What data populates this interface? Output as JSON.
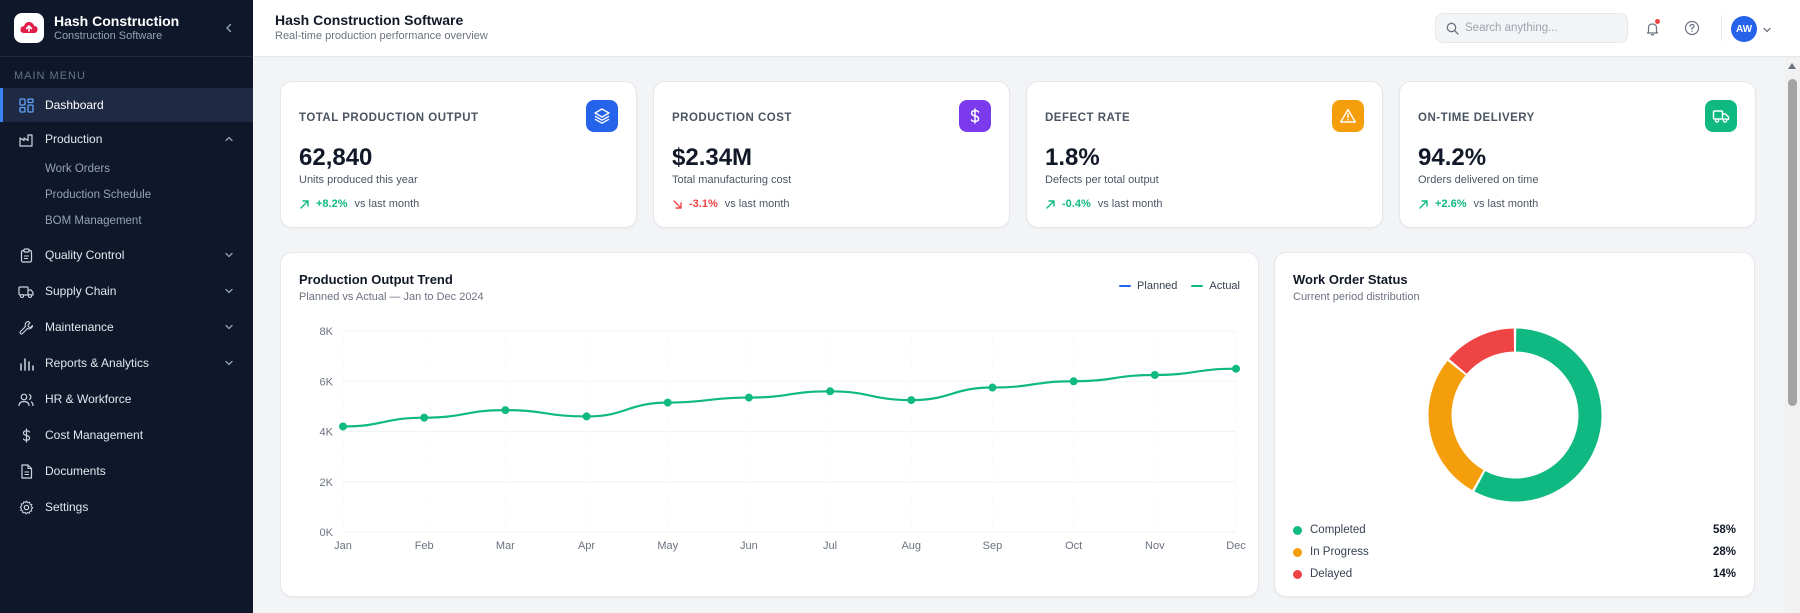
{
  "app": {
    "brand_title": "Hash Construction",
    "brand_subtitle": "Construction Software"
  },
  "sidebar": {
    "heading": "MAIN MENU",
    "items": [
      {
        "label": "Dashboard",
        "icon": "dashboard-grid-icon",
        "active": true
      },
      {
        "label": "Production",
        "icon": "factory-icon",
        "expanded": true
      },
      {
        "label": "Quality Control",
        "icon": "clipboard-icon"
      },
      {
        "label": "Supply Chain",
        "icon": "truck-icon"
      },
      {
        "label": "Maintenance",
        "icon": "wrench-icon"
      },
      {
        "label": "Reports & Analytics",
        "icon": "bar-chart-icon"
      },
      {
        "label": "HR & Workforce",
        "icon": "users-icon"
      },
      {
        "label": "Cost Management",
        "icon": "dollar-icon"
      },
      {
        "label": "Documents",
        "icon": "document-icon"
      },
      {
        "label": "Settings",
        "icon": "gear-icon"
      }
    ],
    "production_subitems": [
      "Work Orders",
      "Production Schedule",
      "BOM Management"
    ]
  },
  "header": {
    "title": "Hash Construction Software",
    "subtitle": "Real-time production performance overview",
    "search_placeholder": "Search anything...",
    "avatar_initials": "AW"
  },
  "kpis": [
    {
      "label": "TOTAL PRODUCTION OUTPUT",
      "value": "62,840",
      "desc": "Units produced this year",
      "trend": "+8.2%",
      "trend_dir": "up",
      "trend_label": "vs last month",
      "icon": "layers-icon",
      "color": "#2563eb"
    },
    {
      "label": "PRODUCTION COST",
      "value": "$2.34M",
      "desc": "Total manufacturing cost",
      "trend": "-3.1%",
      "trend_dir": "down",
      "trend_label": "vs last month",
      "icon": "dollar-icon",
      "color": "#7c3aed"
    },
    {
      "label": "DEFECT RATE",
      "value": "1.8%",
      "desc": "Defects per total output",
      "trend": "-0.4%",
      "trend_dir": "up",
      "trend_label": "vs last month",
      "icon": "warning-icon",
      "color": "#f59e0b"
    },
    {
      "label": "ON-TIME DELIVERY",
      "value": "94.2%",
      "desc": "Orders delivered on time",
      "trend": "+2.6%",
      "trend_dir": "up",
      "trend_label": "vs last month",
      "icon": "truck-icon",
      "color": "#10b981"
    }
  ],
  "trend_card": {
    "title": "Production Output Trend",
    "subtitle": "Planned vs Actual — Jan to Dec 2024",
    "legend": [
      {
        "name": "Planned",
        "color": "#2563eb"
      },
      {
        "name": "Actual",
        "color": "#10b981"
      }
    ]
  },
  "status_card": {
    "title": "Work Order Status",
    "subtitle": "Current period distribution"
  },
  "chart_data": [
    {
      "type": "line",
      "x": [
        "Jan",
        "Feb",
        "Mar",
        "Apr",
        "May",
        "Jun",
        "Jul",
        "Aug",
        "Sep",
        "Oct",
        "Nov",
        "Dec"
      ],
      "yticks": [
        "0K",
        "2K",
        "4K",
        "6K",
        "8K"
      ],
      "ylim": [
        0,
        8000
      ],
      "grid": true,
      "series": [
        {
          "name": "Actual",
          "color": "#10b981",
          "values": [
            4200,
            4550,
            4850,
            4600,
            5150,
            5350,
            5600,
            5250,
            5750,
            6000,
            6250,
            6500
          ]
        }
      ]
    },
    {
      "type": "pie",
      "labels": [
        "Completed",
        "In Progress",
        "Delayed"
      ],
      "values": [
        58,
        28,
        14
      ],
      "display": [
        "58%",
        "28%",
        "14%"
      ],
      "colors": [
        "#10b981",
        "#f59e0b",
        "#ef4444"
      ]
    }
  ]
}
